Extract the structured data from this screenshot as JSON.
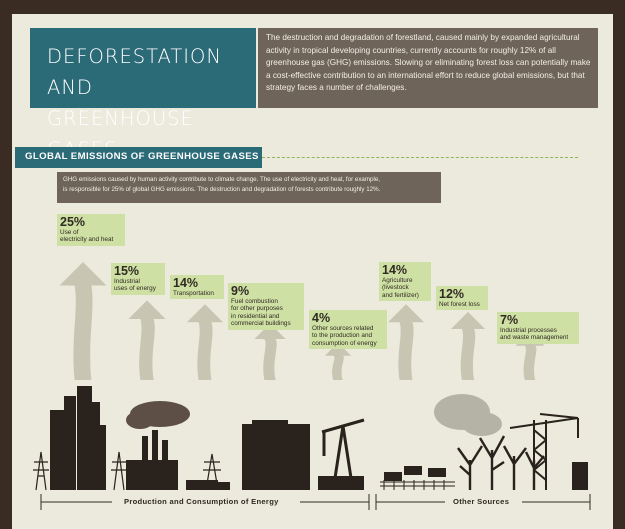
{
  "title": {
    "line1": "DEFORESTATION AND",
    "line2": "GREENHOUSE GASES"
  },
  "intro": "The destruction and degradation of forestland, caused mainly by expanded agricultural activity in tropical developing countries, currently accounts for roughly 12% of all greenhouse gas (GHG) emissions. Slowing or eliminating forest loss can potentially make a cost-effective contribution to an international effort to reduce global emissions, but that strategy faces a number of challenges.",
  "section_title": "GLOBAL EMISSIONS OF GREENHOUSE GASES",
  "note": {
    "line1": "GHG emissions caused by human activity contribute to climate change. The use of electricity and heat, for example,",
    "line2": "is responsible for 25% of global GHG emissions. The destruction and degradation of forests contribute roughly 12%."
  },
  "sources": [
    {
      "pct": "25%",
      "lines": [
        "Use of",
        "electricity and heat"
      ],
      "share": 25
    },
    {
      "pct": "15%",
      "lines": [
        "Industrial",
        "uses of energy"
      ],
      "share": 15
    },
    {
      "pct": "14%",
      "lines": [
        "Transportation"
      ],
      "share": 14
    },
    {
      "pct": "9%",
      "lines": [
        "Fuel combustion",
        "for other purposes",
        "in residential and",
        "commercial buildings"
      ],
      "share": 9
    },
    {
      "pct": "4%",
      "lines": [
        "Other sources related",
        "to the production and",
        "consumption of energy"
      ],
      "share": 4
    },
    {
      "pct": "14%",
      "lines": [
        "Agriculture",
        "(livestock",
        "and fertilizer)"
      ],
      "share": 14
    },
    {
      "pct": "12%",
      "lines": [
        "Net forest loss"
      ],
      "share": 12
    },
    {
      "pct": "7%",
      "lines": [
        "Industrial processes",
        "and waste management"
      ],
      "share": 7
    }
  ],
  "groups": {
    "energy": "Production and Consumption of Energy",
    "other": "Other Sources"
  },
  "colors": {
    "frame": "#3a2c22",
    "paper": "#ebeadc",
    "teal": "#2b6a77",
    "taupe": "#6f6459",
    "label_green": "#cfe0a4",
    "arrow": "#c8c5b2",
    "silhouette": "#2a221c"
  }
}
